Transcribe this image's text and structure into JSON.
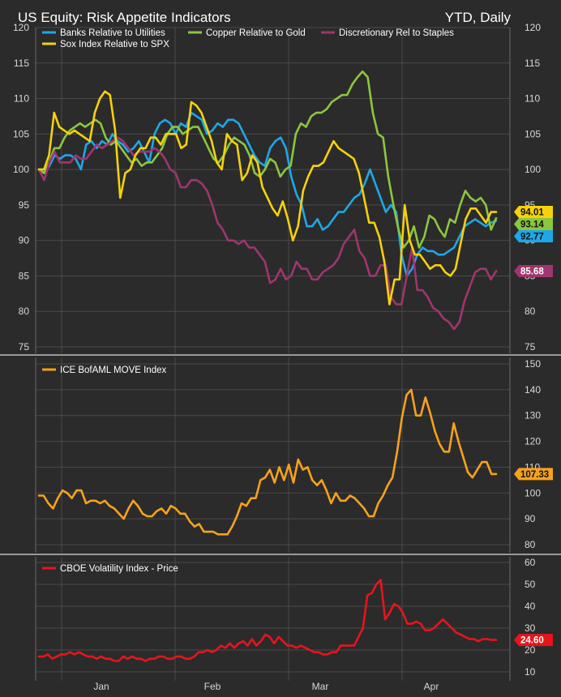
{
  "header": {
    "title": "US Equity: Risk Appetite Indicators",
    "period": "YTD, Daily"
  },
  "colors": {
    "background": "#2b2b2b",
    "grid": "#4a4a4a",
    "divider": "#6a6a6a"
  },
  "chart_data": [
    {
      "type": "line",
      "ylim": [
        75,
        120
      ],
      "yticks": [
        75,
        80,
        85,
        90,
        95,
        100,
        105,
        110,
        115,
        120
      ],
      "grid": true,
      "legend": "top-left",
      "series": [
        {
          "name": "Banks Relative to Utilities",
          "color": "#1ea7e8",
          "last": "92.77",
          "values": [
            100,
            99.5,
            100.5,
            102,
            101.5,
            102,
            102,
            101.5,
            100,
            103.5,
            104,
            103,
            104,
            103.5,
            105,
            104,
            103.5,
            102.5,
            103,
            104,
            102.5,
            101,
            105,
            106.5,
            107,
            106.5,
            105,
            106.5,
            106,
            108,
            107.5,
            107,
            105,
            105.5,
            106.5,
            106,
            107,
            107,
            106.5,
            105,
            103.5,
            102,
            101,
            100.5,
            103,
            104,
            104.5,
            103,
            99,
            96.5,
            95,
            92,
            92,
            93,
            91.5,
            92,
            93,
            94,
            94,
            95,
            96,
            96.5,
            98,
            100,
            98,
            96,
            94,
            95,
            94,
            88,
            85,
            86,
            88,
            89,
            88.5,
            88.5,
            88,
            88,
            88.5,
            89,
            90.5,
            92,
            92.5,
            93,
            92.5,
            92,
            92.5,
            92.77
          ]
        },
        {
          "name": "Copper Relative to Gold",
          "color": "#8cc63f",
          "last": "93.14",
          "values": [
            100,
            99.5,
            101,
            103,
            103,
            104.5,
            105.5,
            106,
            106.5,
            106,
            106.5,
            107,
            106.5,
            104.5,
            103.5,
            104,
            103,
            102,
            101,
            101.5,
            100.5,
            101,
            101,
            102,
            103,
            105,
            106,
            106,
            105,
            105.5,
            106,
            106,
            104.5,
            103,
            101.5,
            101,
            102,
            103.5,
            104.5,
            104,
            103.5,
            102,
            99.5,
            99,
            100,
            101.5,
            101,
            99,
            100,
            100.5,
            105,
            106.5,
            106,
            107.5,
            108,
            108,
            108.5,
            109.5,
            110,
            110.5,
            110.5,
            112,
            113,
            113.8,
            113,
            108,
            105,
            104.5,
            99,
            95,
            91.5,
            89,
            90,
            92,
            89,
            90.5,
            93.5,
            93,
            91.5,
            90.5,
            93,
            92.5,
            95,
            97,
            96,
            95.5,
            96,
            95,
            91.5,
            93.14
          ]
        },
        {
          "name": "Discretionary Rel to Staples",
          "color": "#a0356f",
          "last": "85.68",
          "values": [
            100,
            98.5,
            101,
            102.5,
            101,
            101,
            101,
            102,
            101.5,
            101.5,
            102.5,
            103.5,
            103,
            103.5,
            104,
            104.5,
            104,
            103,
            102,
            102.5,
            102.5,
            102.5,
            103,
            102.5,
            101.5,
            100,
            99.5,
            97.5,
            97.5,
            98.5,
            98.5,
            98,
            97,
            95,
            92.5,
            91.5,
            90,
            90,
            89.5,
            90,
            89,
            89,
            88,
            87,
            84,
            84.5,
            86,
            84.5,
            85,
            87,
            86,
            86,
            84.5,
            84.5,
            85.5,
            86,
            86.5,
            87.5,
            89.5,
            90.5,
            91.5,
            88.5,
            87.5,
            85,
            85,
            86.5,
            86.5,
            82,
            81,
            81,
            85,
            89,
            83,
            83,
            82,
            80.5,
            80,
            79,
            78.5,
            77.5,
            78.5,
            81.5,
            83.5,
            85.5,
            86,
            86,
            84.5,
            85.68
          ]
        },
        {
          "name": "Sox Index Relative to SPX",
          "color": "#f5d20a",
          "last": "94.01",
          "values": [
            100,
            100,
            102,
            108,
            106,
            105.5,
            105,
            105.5,
            105,
            104.5,
            104,
            108,
            110,
            111,
            110.5,
            105.5,
            96,
            99.5,
            100,
            102,
            103,
            103,
            104.5,
            104.5,
            103.5,
            105,
            105,
            105,
            103,
            103.5,
            109.5,
            109,
            108,
            106,
            104,
            101,
            100,
            105,
            104,
            103.5,
            98.5,
            99.5,
            102,
            101,
            97.5,
            96,
            94.5,
            93.5,
            95.5,
            93,
            90,
            92,
            97,
            99,
            100.5,
            100.5,
            101,
            102.5,
            104,
            103,
            102.5,
            102,
            101.5,
            99.5,
            96,
            92.5,
            92.5,
            90.5,
            87,
            81,
            84.5,
            84.5,
            95,
            90,
            88,
            88,
            87,
            86,
            86.5,
            86.5,
            85.5,
            85,
            86,
            89.5,
            93,
            94.5,
            94.5,
            93.5,
            92.5,
            94.01,
            94.01
          ]
        }
      ]
    },
    {
      "type": "line",
      "ylim": [
        80,
        150
      ],
      "yticks": [
        80,
        90,
        100,
        110,
        120,
        130,
        140,
        150
      ],
      "grid": true,
      "legend": "top-left",
      "series": [
        {
          "name": "ICE BofAML MOVE Index",
          "color": "#f7a21b",
          "last": "107.33",
          "values": [
            99,
            99,
            96,
            94,
            98,
            101,
            100,
            98,
            101,
            101,
            96,
            97,
            97,
            96,
            97,
            95,
            94,
            92,
            90,
            94,
            97,
            95,
            92,
            91,
            91,
            93,
            94,
            92,
            95,
            94,
            92,
            92,
            89,
            87,
            88,
            85,
            85,
            85,
            84,
            84,
            84,
            87,
            91,
            96,
            95,
            98,
            98,
            105,
            106,
            109,
            104,
            110,
            105,
            111,
            104,
            113,
            109,
            110,
            105,
            103,
            105,
            101,
            96,
            100,
            97,
            97,
            99,
            98,
            96,
            94,
            91,
            91,
            96,
            99,
            103,
            106,
            116,
            129,
            138,
            140,
            130,
            130,
            137,
            131,
            124,
            119,
            116,
            116,
            127,
            120,
            114,
            108,
            106,
            109,
            112,
            112,
            107.33,
            107.33
          ]
        }
      ]
    },
    {
      "type": "line",
      "ylim": [
        10,
        60
      ],
      "yticks": [
        10,
        20,
        30,
        40,
        50,
        60
      ],
      "grid": true,
      "legend": "top-left",
      "series": [
        {
          "name": "CBOE Volatility Index - Price",
          "color": "#e8141c",
          "last": "24.60",
          "values": [
            17,
            17,
            18,
            16,
            17,
            18,
            18,
            19,
            18,
            19,
            18,
            17,
            17,
            16,
            17,
            16,
            16,
            15,
            15,
            17,
            16,
            17,
            16,
            16,
            15,
            16,
            16,
            17,
            17,
            16,
            16,
            17,
            17,
            16,
            16,
            17,
            19,
            19,
            20,
            19,
            20,
            22,
            21,
            23,
            21,
            23,
            24,
            22,
            25,
            22,
            24,
            27,
            26,
            23,
            26,
            24,
            22,
            22,
            21,
            22,
            21,
            20,
            19,
            19,
            18,
            18,
            19,
            19,
            22,
            22,
            22,
            22,
            26,
            30,
            45,
            46,
            50,
            52,
            34,
            37,
            41,
            40,
            37,
            32,
            32,
            33,
            32,
            29,
            29,
            30,
            32,
            34,
            32,
            30,
            28,
            27,
            26,
            25,
            25,
            24,
            25,
            25,
            24.6,
            24.6
          ]
        }
      ]
    }
  ],
  "x_axis": {
    "labels": [
      "Jan",
      "Feb",
      "Mar",
      "Apr"
    ]
  }
}
